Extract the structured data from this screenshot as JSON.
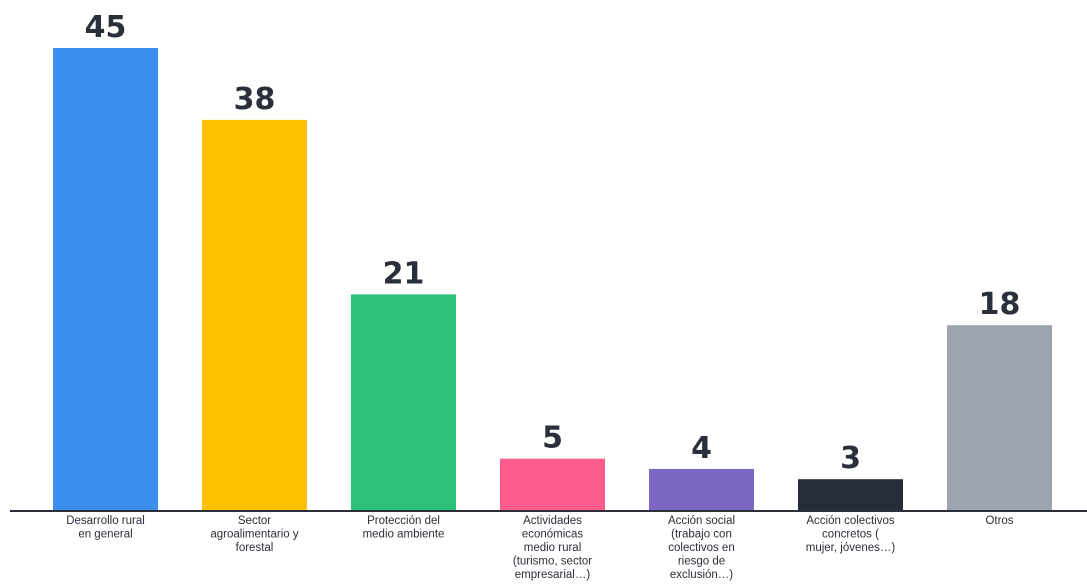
{
  "chart_data": {
    "type": "bar",
    "categories": [
      [
        "Desarrollo rural",
        "en general"
      ],
      [
        "Sector",
        "agroalimentario y",
        "forestal"
      ],
      [
        "Protección del",
        "medio ambiente"
      ],
      [
        "Actividades",
        "económicas",
        "medio rural",
        "(turismo, sector",
        "empresarial…)"
      ],
      [
        "Acción social",
        "(trabajo con",
        "colectivos en",
        "riesgo de",
        "exclusión…)"
      ],
      [
        "Acción colectivos",
        "concretos (",
        "mujer, jóvenes…)"
      ],
      [
        "Otros"
      ]
    ],
    "values": [
      45,
      38,
      21,
      5,
      4,
      3,
      18
    ],
    "colors": [
      "#3d8fef",
      "#fcc000",
      "#2cc27a",
      "#fd5d8d",
      "#7c67c5",
      "#272c3a",
      "#9ea3b0"
    ],
    "title": "",
    "xlabel": "",
    "ylabel": "",
    "ylim": [
      0,
      45
    ],
    "grid": false,
    "legend": "none"
  }
}
